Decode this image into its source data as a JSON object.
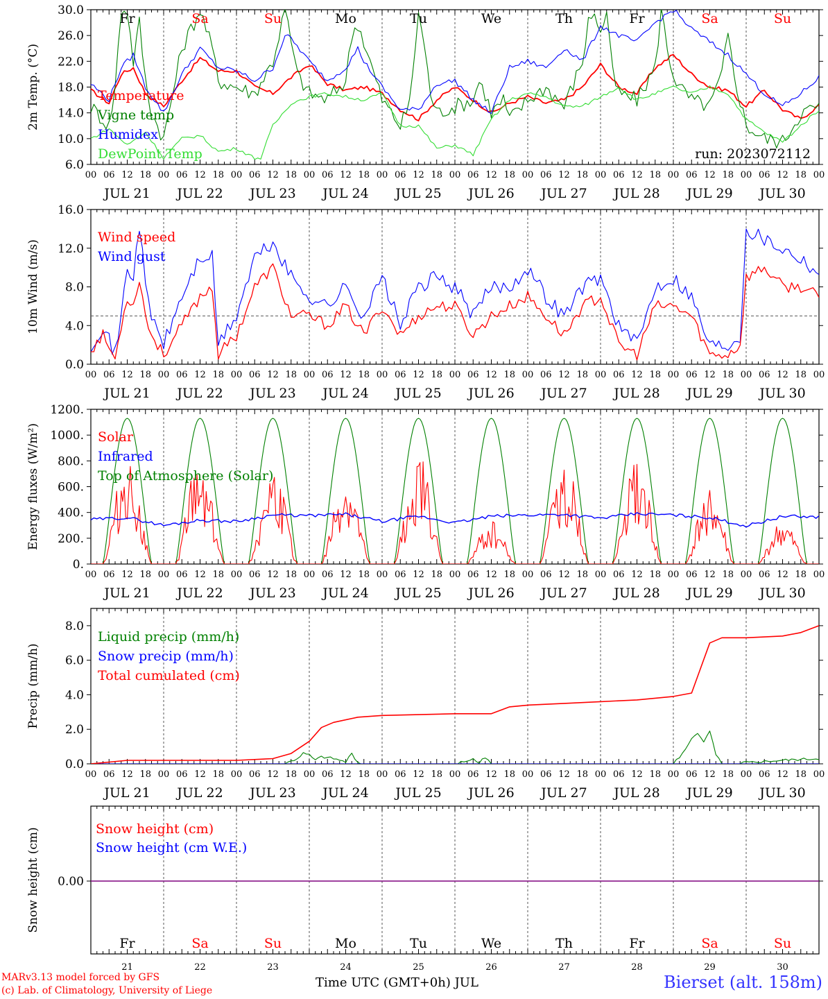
{
  "run_label": "run: 2023072112",
  "model_line": "MARv3.13 model forced by GFS",
  "credit_line": "(c) Lab. of Climatology, University of Liege",
  "x_axis_label": "Time UTC (GMT+0h) JUL",
  "station_label": "Bierset (alt. 158m)",
  "hour_ticks": [
    "00",
    "06",
    "12",
    "18"
  ],
  "day_labels": [
    "JUL 21",
    "JUL 22",
    "JUL 23",
    "JUL 24",
    "JUL 25",
    "JUL 26",
    "JUL 27",
    "JUL 28",
    "JUL 29",
    "JUL 30"
  ],
  "day_numbers": [
    "21",
    "22",
    "23",
    "24",
    "25",
    "26",
    "27",
    "28",
    "29",
    "30"
  ],
  "weekdays": [
    {
      "name": "Fr",
      "color": "#000000"
    },
    {
      "name": "Sa",
      "color": "#ff0000"
    },
    {
      "name": "Su",
      "color": "#ff0000"
    },
    {
      "name": "Mo",
      "color": "#000000"
    },
    {
      "name": "Tu",
      "color": "#000000"
    },
    {
      "name": "We",
      "color": "#000000"
    },
    {
      "name": "Th",
      "color": "#000000"
    },
    {
      "name": "Fr",
      "color": "#000000"
    },
    {
      "name": "Sa",
      "color": "#ff0000"
    },
    {
      "name": "Su",
      "color": "#ff0000"
    }
  ],
  "colors": {
    "red": "#ff0000",
    "green": "#008000",
    "blue": "#0000ff",
    "lightgreen": "#33dd33",
    "purple": "#7f007f"
  },
  "chart_data": [
    {
      "id": "temp",
      "type": "line",
      "ylabel": "2m Temp. (°C)",
      "ylim": [
        6,
        30
      ],
      "yticks": [
        "6.0",
        "10.0",
        "14.0",
        "18.0",
        "22.0",
        "26.0",
        "30.0"
      ],
      "x_unit": "hours since JUL 21 00 UTC",
      "series": [
        {
          "name": "Temperature",
          "color": "#ff0000",
          "x": [
            0,
            6,
            10,
            14,
            18,
            24,
            30,
            36,
            42,
            48,
            54,
            60,
            66,
            72,
            78,
            84,
            90,
            96,
            102,
            108,
            114,
            120,
            126,
            132,
            138,
            144,
            150,
            156,
            162,
            168,
            174,
            180,
            186,
            192,
            198,
            204,
            210,
            216,
            222,
            228,
            234,
            240
          ],
          "y": [
            17.5,
            15.5,
            20,
            21,
            17,
            15,
            19,
            22.5,
            20.5,
            20.5,
            18,
            17,
            19.5,
            21.5,
            18.5,
            17.5,
            18,
            17,
            14.5,
            13,
            16,
            18,
            16,
            14,
            15.5,
            16.5,
            15.5,
            16,
            18,
            21.5,
            18,
            17,
            21,
            23,
            20,
            18,
            17.5,
            15,
            17.5,
            14.5,
            13,
            15.2
          ]
        },
        {
          "name": "Vigne temp",
          "color": "#008000",
          "x": [
            0,
            6,
            8,
            10,
            12,
            14,
            16,
            18,
            20,
            24,
            30,
            36,
            40,
            42,
            48,
            54,
            60,
            64,
            66,
            68,
            72,
            78,
            84,
            86,
            88,
            90,
            92,
            96,
            102,
            104,
            106,
            108,
            110,
            112,
            114,
            120,
            126,
            128,
            130,
            132,
            134,
            136,
            138,
            144,
            150,
            156,
            162,
            164,
            166,
            168,
            170,
            172,
            174,
            180,
            186,
            188,
            190,
            192,
            194,
            198,
            204,
            208,
            210,
            212,
            216,
            222,
            228,
            234,
            240
          ],
          "y": [
            15,
            12,
            18,
            30,
            30,
            22,
            28,
            19,
            14,
            10,
            24,
            30,
            24,
            19,
            18,
            17,
            22,
            30,
            25,
            20,
            17,
            16,
            19,
            26,
            28,
            25,
            22,
            16,
            12,
            14,
            19,
            30,
            24,
            17,
            14,
            15,
            16,
            19,
            17,
            14,
            15,
            16,
            13,
            16,
            18,
            15,
            22,
            28,
            30,
            26,
            30,
            20,
            17,
            16,
            21,
            30,
            24,
            20,
            18,
            16,
            15,
            20,
            26,
            20,
            12,
            10,
            9.5,
            14,
            15
          ]
        },
        {
          "name": "Humidex",
          "color": "#0000ff",
          "x": [
            0,
            6,
            10,
            14,
            18,
            24,
            30,
            36,
            42,
            48,
            54,
            60,
            64,
            66,
            72,
            78,
            84,
            88,
            90,
            96,
            102,
            108,
            114,
            120,
            126,
            132,
            138,
            144,
            150,
            156,
            162,
            168,
            174,
            180,
            186,
            192,
            198,
            204,
            210,
            216,
            222,
            228,
            234,
            240
          ],
          "y": [
            18.5,
            16,
            21,
            23,
            18,
            14,
            20,
            24,
            21,
            20.5,
            19,
            21,
            26,
            25.5,
            22,
            19,
            21,
            24,
            22,
            18,
            14.5,
            14.5,
            18.5,
            19,
            16,
            14,
            21,
            22,
            21,
            24,
            22,
            27.5,
            26,
            25,
            28,
            30,
            27,
            25,
            23,
            20,
            17,
            15,
            17,
            19.5
          ]
        },
        {
          "name": "DewPoint Temp",
          "color": "#33dd33",
          "x": [
            0,
            6,
            12,
            18,
            24,
            30,
            36,
            42,
            48,
            54,
            56,
            60,
            66,
            72,
            78,
            84,
            90,
            96,
            102,
            108,
            114,
            120,
            126,
            132,
            138,
            144,
            150,
            156,
            162,
            168,
            174,
            180,
            186,
            192,
            198,
            204,
            210,
            216,
            222,
            228,
            234,
            240
          ],
          "y": [
            10,
            11.5,
            9,
            11,
            7,
            10,
            10.5,
            8,
            8.5,
            7,
            7,
            12,
            15.5,
            16.5,
            17,
            16.5,
            16,
            17,
            12,
            12,
            8.5,
            9,
            7.5,
            13,
            16,
            17,
            16.5,
            15,
            15,
            16.5,
            18,
            16,
            17,
            18,
            17,
            18,
            17,
            13,
            11,
            9.5,
            12,
            14.5
          ]
        }
      ]
    },
    {
      "id": "wind",
      "type": "line",
      "ylabel": "10m Wind (m/s)",
      "ylim": [
        0,
        16
      ],
      "yticks": [
        "0.0",
        "4.0",
        "8.0",
        "12.0",
        "16.0"
      ],
      "reference_line": 5,
      "series": [
        {
          "name": "Wind speed",
          "color": "#ff0000",
          "x": [
            0,
            4,
            8,
            10,
            12,
            14,
            16,
            18,
            20,
            24,
            30,
            36,
            40,
            42,
            48,
            54,
            60,
            66,
            72,
            78,
            84,
            90,
            96,
            102,
            108,
            114,
            120,
            126,
            132,
            138,
            144,
            150,
            156,
            162,
            168,
            174,
            180,
            186,
            192,
            198,
            204,
            210,
            214,
            216,
            222,
            228,
            234,
            240
          ],
          "y": [
            1.5,
            3,
            0.5,
            4,
            7,
            6,
            9,
            5,
            3,
            1,
            4,
            7,
            8,
            1,
            3,
            8,
            10,
            5,
            5,
            4,
            6,
            3,
            6,
            3,
            5,
            6,
            6,
            3,
            5,
            6,
            7,
            5,
            3,
            6,
            7,
            2,
            1,
            6,
            6,
            5,
            1,
            1,
            2,
            9,
            10,
            8,
            8,
            7
          ]
        },
        {
          "name": "Wind gust",
          "color": "#0000ff",
          "x": [
            0,
            4,
            8,
            10,
            12,
            14,
            16,
            18,
            20,
            24,
            30,
            36,
            40,
            42,
            48,
            54,
            60,
            66,
            72,
            78,
            84,
            90,
            96,
            102,
            108,
            114,
            120,
            126,
            132,
            138,
            144,
            150,
            156,
            162,
            168,
            174,
            180,
            186,
            192,
            198,
            204,
            210,
            214,
            216,
            222,
            228,
            234,
            240
          ],
          "y": [
            2,
            4,
            1,
            5,
            10,
            9,
            14.5,
            8,
            5,
            2,
            7,
            11,
            11,
            2,
            5,
            11,
            12.5,
            9,
            7,
            6,
            8,
            5,
            9,
            4,
            8,
            9,
            8,
            5,
            8,
            8,
            10,
            7,
            5,
            8,
            9,
            4,
            2,
            8,
            9,
            7,
            2,
            2,
            3,
            14,
            13,
            12,
            11,
            9.5
          ]
        }
      ]
    },
    {
      "id": "energy",
      "type": "line",
      "ylabel": "Energy fluxes (W/m²)",
      "ylim": [
        0,
        1200
      ],
      "yticks": [
        "0.",
        "200.",
        "400.",
        "600.",
        "800.",
        "1000.",
        "1200."
      ],
      "series": [
        {
          "name": "Solar",
          "color": "#ff0000",
          "peaks": [
            840,
            850,
            760,
            690,
            850,
            360,
            830,
            820,
            580,
            330
          ]
        },
        {
          "name": "Infrared",
          "color": "#0000ff",
          "x": [
            0,
            12,
            24,
            36,
            48,
            60,
            72,
            84,
            96,
            108,
            120,
            132,
            144,
            156,
            168,
            180,
            192,
            204,
            216,
            228,
            240
          ],
          "y": [
            345,
            360,
            300,
            340,
            330,
            380,
            375,
            385,
            330,
            370,
            320,
            370,
            380,
            385,
            355,
            390,
            380,
            360,
            295,
            370,
            365
          ]
        },
        {
          "name": "Top of Atmosphere (Solar)",
          "color": "#008000",
          "peak": 1130,
          "sunrise_hour": 4,
          "sunset_hour": 20
        }
      ]
    },
    {
      "id": "precip",
      "type": "line",
      "ylabel": "Precip (mm/h)",
      "ylim": [
        0,
        9
      ],
      "yticks": [
        "0.0",
        "2.0",
        "4.0",
        "6.0",
        "8.0"
      ],
      "series": [
        {
          "name": "Liquid precip (mm/h)",
          "color": "#008000",
          "x": [
            0,
            64,
            68,
            70,
            72,
            74,
            76,
            80,
            84,
            86,
            88,
            90,
            92,
            96,
            120,
            126,
            128,
            130,
            132,
            150,
            192,
            196,
            198,
            200,
            202,
            204,
            206,
            208,
            210,
            228,
            240
          ],
          "y": [
            0,
            0,
            0.3,
            0.6,
            0.5,
            0.2,
            0.4,
            0.3,
            0.1,
            0.6,
            0.1,
            0,
            0.05,
            0,
            0,
            0.3,
            0.1,
            0.4,
            0,
            0,
            0,
            0.8,
            1.5,
            1.8,
            1.2,
            1.9,
            0.5,
            0,
            0,
            0.2,
            0.3
          ]
        },
        {
          "name": "Snow precip (mm/h)",
          "color": "#0000ff",
          "x": [
            0,
            240
          ],
          "y": [
            0,
            0
          ]
        },
        {
          "name": "Total cumulated (cm)",
          "color": "#ff0000",
          "x": [
            0,
            12,
            24,
            48,
            60,
            66,
            72,
            76,
            80,
            88,
            96,
            120,
            132,
            138,
            144,
            156,
            168,
            180,
            192,
            198,
            204,
            208,
            216,
            228,
            234,
            240
          ],
          "y": [
            0,
            0.2,
            0.2,
            0.2,
            0.3,
            0.6,
            1.3,
            2.1,
            2.4,
            2.7,
            2.8,
            2.9,
            2.9,
            3.3,
            3.4,
            3.5,
            3.6,
            3.7,
            3.9,
            4.1,
            7.0,
            7.3,
            7.3,
            7.4,
            7.6,
            8.0
          ]
        }
      ]
    },
    {
      "id": "snow",
      "type": "line",
      "ylabel": "Snow height (cm)",
      "yticks": [
        "0.00"
      ],
      "series": [
        {
          "name": "Snow height (cm)",
          "color": "#ff0000",
          "x": [
            0,
            240
          ],
          "y": [
            0,
            0
          ]
        },
        {
          "name": "Snow height (cm W.E.)",
          "color": "#0000ff",
          "x": [
            0,
            240
          ],
          "y": [
            0,
            0
          ]
        }
      ]
    }
  ]
}
